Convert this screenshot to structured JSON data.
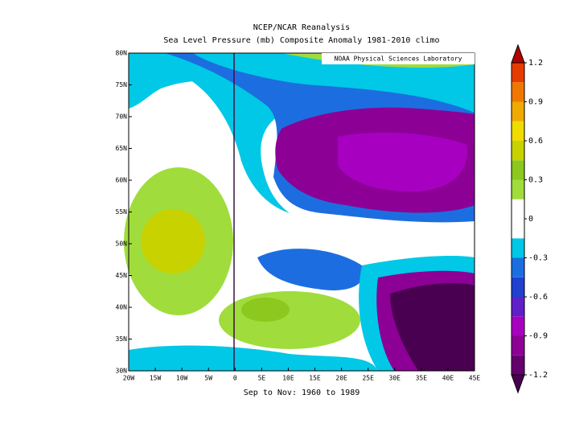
{
  "header": {
    "title": "NCEP/NCAR Reanalysis",
    "subtitle": "Sea Level Pressure (mb) Composite Anomaly 1981-2010 climo"
  },
  "map": {
    "credit": "NOAA Physical Sciences Laboratory",
    "period": "Sep to Nov: 1960 to 1989",
    "lonlim": [
      -20,
      45
    ],
    "latlim": [
      30,
      80
    ],
    "lon_ticks": [
      {
        "value": -20,
        "label": "20W"
      },
      {
        "value": -15,
        "label": "15W"
      },
      {
        "value": -10,
        "label": "10W"
      },
      {
        "value": -5,
        "label": "5W"
      },
      0,
      {
        "value": 5,
        "label": "5E"
      },
      {
        "value": 10,
        "label": "10E"
      },
      {
        "value": 15,
        "label": "15E"
      },
      {
        "value": 20,
        "label": "20E"
      },
      {
        "value": 25,
        "label": "25E"
      },
      {
        "value": 30,
        "label": "30E"
      },
      {
        "value": 35,
        "label": "35E"
      },
      {
        "value": 40,
        "label": "40E"
      },
      {
        "value": 45,
        "label": "45E"
      }
    ],
    "lat_ticks": [
      {
        "value": 30,
        "label": "30N"
      },
      {
        "value": 35,
        "label": "35N"
      },
      {
        "value": 40,
        "label": "40N"
      },
      {
        "value": 45,
        "label": "45N"
      },
      {
        "value": 50,
        "label": "50N"
      },
      {
        "value": 55,
        "label": "55N"
      },
      {
        "value": 60,
        "label": "60N"
      },
      {
        "value": 65,
        "label": "65N"
      },
      {
        "value": 70,
        "label": "70N"
      },
      {
        "value": 75,
        "label": "75N"
      },
      {
        "value": 80,
        "label": "80N"
      }
    ]
  },
  "colorbar": {
    "ticks": [
      1.2,
      0.9,
      0.6,
      0.3,
      0,
      -0.3,
      -0.6,
      -0.9,
      -1.2
    ],
    "bounds": [
      -1.2,
      -1.05,
      -0.9,
      -0.75,
      -0.6,
      -0.45,
      -0.3,
      -0.15,
      0,
      0.15,
      0.3,
      0.45,
      0.6,
      0.75,
      0.9,
      1.05,
      1.2
    ],
    "colors": [
      "#4a0050",
      "#64006e",
      "#8c0096",
      "#a800c0",
      "#6020c8",
      "#2040d0",
      "#1c6ee0",
      "#00c8e6",
      "#ffffff",
      "#ffffff",
      "#a0dc3c",
      "#8cc81e",
      "#c8d200",
      "#f0dc00",
      "#f0aa00",
      "#f07800",
      "#e63c00",
      "#b40000"
    ]
  }
}
